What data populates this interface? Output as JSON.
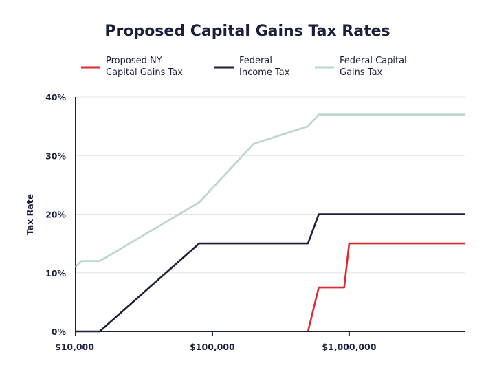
{
  "chart_data": {
    "type": "line",
    "title": "Proposed Capital Gains Tax Rates",
    "xlabel": "",
    "ylabel": "Tax Rate",
    "x_scale": "log",
    "xlim": [
      10000,
      7000000
    ],
    "ylim": [
      0,
      40
    ],
    "y_ticks": [
      {
        "value": 0,
        "label": "0%"
      },
      {
        "value": 10,
        "label": "10%"
      },
      {
        "value": 20,
        "label": "20%"
      },
      {
        "value": 30,
        "label": "30%"
      },
      {
        "value": 40,
        "label": "40%"
      }
    ],
    "x_ticks": [
      {
        "value": 10000,
        "label": "$10,000"
      },
      {
        "value": 100000,
        "label": "$100,000"
      },
      {
        "value": 1000000,
        "label": "$1,000,000"
      }
    ],
    "grid": "horizontal",
    "legend_position": "top",
    "series": [
      {
        "name": "Proposed NY Capital Gains Tax",
        "legend_lines": [
          "Proposed NY",
          "Capital Gains Tax"
        ],
        "color": "#e0282e",
        "points": [
          [
            500000,
            0
          ],
          [
            600000,
            7.5
          ],
          [
            920000,
            7.5
          ],
          [
            1000000,
            15
          ],
          [
            7000000,
            15
          ]
        ]
      },
      {
        "name": "Federal Income Tax",
        "legend_lines": [
          "Federal",
          "Income Tax"
        ],
        "color": "#1b1f3b",
        "points": [
          [
            10000,
            0
          ],
          [
            15000,
            0
          ],
          [
            80000,
            15
          ],
          [
            500000,
            15
          ],
          [
            600000,
            20
          ],
          [
            7000000,
            20
          ]
        ]
      },
      {
        "name": "Federal Capital Gains Tax",
        "legend_lines": [
          "Federal Capital",
          "Gains Tax"
        ],
        "color": "#b9d6c8",
        "points": [
          [
            10000,
            11
          ],
          [
            11000,
            12
          ],
          [
            15000,
            12
          ],
          [
            80000,
            22
          ],
          [
            200000,
            32
          ],
          [
            500000,
            35
          ],
          [
            600000,
            37
          ],
          [
            7000000,
            37
          ]
        ]
      }
    ]
  }
}
